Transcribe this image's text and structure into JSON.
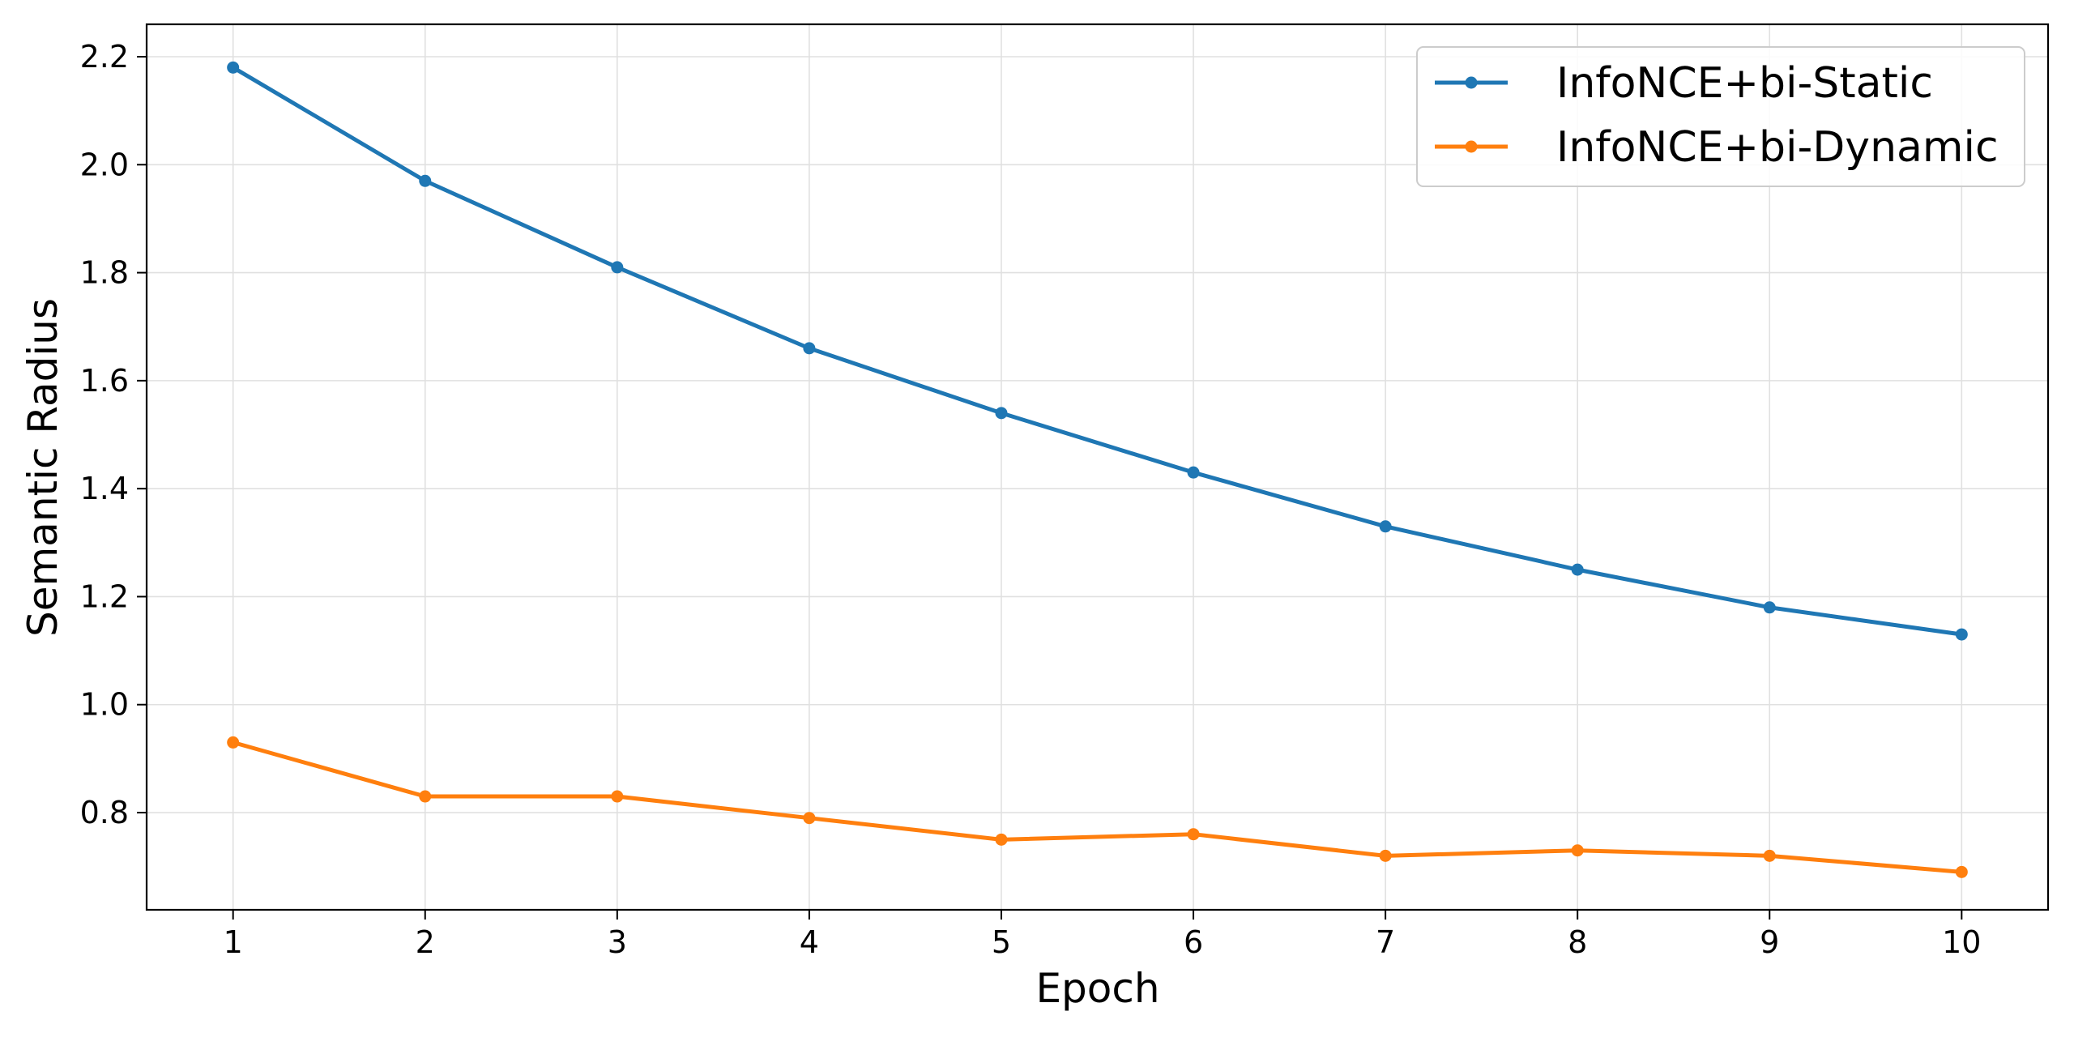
{
  "chart_data": {
    "type": "line",
    "title": "",
    "xlabel": "Epoch",
    "ylabel": "Semantic Radius",
    "x": [
      1,
      2,
      3,
      4,
      5,
      6,
      7,
      8,
      9,
      10
    ],
    "xticks": [
      "1",
      "2",
      "3",
      "4",
      "5",
      "6",
      "7",
      "8",
      "9",
      "10"
    ],
    "yticks": [
      "0.8",
      "1.0",
      "1.2",
      "1.4",
      "1.6",
      "1.8",
      "2.0",
      "2.2"
    ],
    "xlim": [
      0.55,
      10.45
    ],
    "ylim": [
      0.62,
      2.26
    ],
    "grid": true,
    "legend_position": "top-right",
    "series": [
      {
        "name": "InfoNCE+bi-Static",
        "color": "#1f77b4",
        "values": [
          2.18,
          1.97,
          1.81,
          1.66,
          1.54,
          1.43,
          1.33,
          1.25,
          1.18,
          1.13
        ]
      },
      {
        "name": "InfoNCE+bi-Dynamic",
        "color": "#ff7f0e",
        "values": [
          0.93,
          0.83,
          0.83,
          0.79,
          0.75,
          0.76,
          0.72,
          0.73,
          0.72,
          0.69
        ]
      }
    ]
  }
}
